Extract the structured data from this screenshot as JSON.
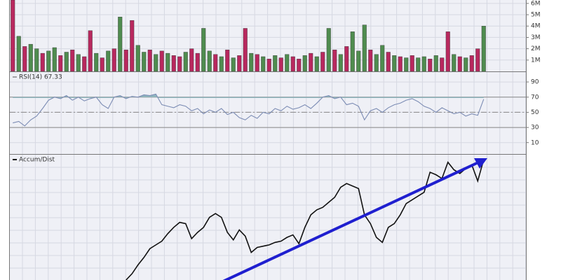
{
  "chart_data": [
    {
      "type": "bar",
      "series": [
        {
          "color": "#4f8c4f",
          "values": [
            null,
            3.1,
            null,
            2.4,
            2.0,
            null,
            1.8,
            2.1,
            null,
            1.7,
            null,
            1.5,
            null,
            null,
            1.6,
            null,
            1.8,
            null,
            4.8,
            null,
            null,
            2.3,
            1.7,
            null,
            1.5,
            null,
            1.6,
            null,
            null,
            1.7,
            null,
            null,
            3.8,
            1.8,
            null,
            1.3,
            null,
            1.2,
            null,
            null,
            1.6,
            null,
            1.3,
            null,
            1.4,
            null,
            1.5,
            null,
            null,
            1.4,
            null,
            1.3,
            null,
            3.8,
            null,
            1.5,
            null,
            3.5,
            1.8,
            4.1,
            null,
            1.5,
            2.3,
            null,
            1.4,
            null,
            1.2,
            null,
            1.2,
            1.3,
            null,
            1.4,
            null,
            null,
            1.5,
            null,
            1.2,
            null,
            null,
            4.0
          ]
        },
        {
          "color": "#b8285e",
          "values": [
            6.3,
            null,
            2.2,
            null,
            null,
            1.6,
            null,
            null,
            1.4,
            null,
            1.9,
            null,
            1.3,
            3.6,
            null,
            1.2,
            null,
            2.0,
            null,
            1.9,
            4.5,
            null,
            null,
            1.9,
            null,
            1.8,
            null,
            1.4,
            1.3,
            null,
            2.0,
            1.6,
            null,
            null,
            1.5,
            null,
            1.9,
            null,
            1.4,
            3.8,
            null,
            1.5,
            null,
            1.1,
            null,
            1.2,
            null,
            1.3,
            1.1,
            null,
            1.6,
            null,
            1.7,
            null,
            1.9,
            null,
            2.2,
            null,
            null,
            null,
            1.9,
            null,
            null,
            1.7,
            null,
            1.3,
            null,
            1.4,
            null,
            null,
            1.1,
            null,
            1.2,
            3.5,
            null,
            1.3,
            null,
            1.4,
            2.0,
            null
          ]
        }
      ],
      "ylim": [
        0,
        6.3
      ],
      "yticks": [
        {
          "value": 1,
          "label": "1M"
        },
        {
          "value": 2,
          "label": "2M"
        },
        {
          "value": 3,
          "label": "3M"
        },
        {
          "value": 4,
          "label": "4M"
        },
        {
          "value": 5,
          "label": "5M"
        },
        {
          "value": 6,
          "label": "6M"
        }
      ],
      "grid": true
    },
    {
      "type": "line",
      "label": "RSI(14) 67.33",
      "color": "#7c8cb4",
      "fill_above": 70,
      "fill_color": "#8fb8c0",
      "values": [
        36,
        38,
        32,
        40,
        45,
        55,
        66,
        70,
        68,
        72,
        66,
        70,
        65,
        68,
        70,
        60,
        55,
        70,
        72,
        68,
        71,
        70,
        73,
        72,
        74,
        60,
        58,
        56,
        60,
        58,
        52,
        55,
        48,
        53,
        50,
        55,
        47,
        50,
        43,
        40,
        46,
        42,
        50,
        48,
        55,
        52,
        58,
        54,
        56,
        60,
        55,
        62,
        70,
        72,
        68,
        70,
        60,
        62,
        58,
        40,
        52,
        55,
        50,
        56,
        60,
        62,
        66,
        68,
        64,
        58,
        55,
        50,
        56,
        52,
        48,
        50,
        45,
        48,
        46,
        67.33
      ],
      "ylim": [
        -5,
        103
      ],
      "yticks": [
        10,
        30,
        50,
        70,
        90
      ],
      "levels": [
        30,
        50,
        70
      ],
      "grid": true
    },
    {
      "type": "line",
      "label": "Accum/Dist",
      "color": "#111111",
      "values": [
        null,
        null,
        null,
        null,
        null,
        null,
        null,
        null,
        null,
        null,
        null,
        null,
        null,
        null,
        null,
        null,
        null,
        null,
        null,
        0,
        5,
        12,
        18,
        25,
        28,
        31,
        37,
        42,
        46,
        45,
        33,
        38,
        42,
        50,
        53,
        50,
        38,
        32,
        40,
        35,
        22,
        26,
        27,
        28,
        30,
        31,
        34,
        36,
        29,
        42,
        52,
        56,
        58,
        62,
        66,
        74,
        77,
        75,
        73,
        52,
        45,
        34,
        30,
        42,
        45,
        52,
        61,
        64,
        67,
        70,
        86,
        84,
        81,
        94,
        88,
        85,
        89,
        92,
        79,
        96
      ],
      "ylim": [
        0,
        100
      ]
    }
  ]
}
